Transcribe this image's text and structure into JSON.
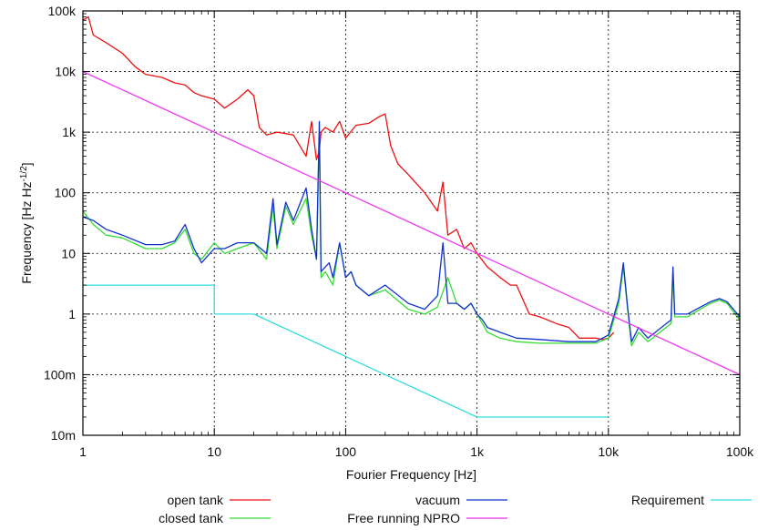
{
  "chart_data": {
    "type": "line",
    "title": "",
    "xlabel": "Fourier Frequency [Hz]",
    "ylabel_main": "Frequency [Hz Hz",
    "ylabel_sup": "-1/2",
    "ylabel_end": "]",
    "x_scale": "log",
    "y_scale": "log",
    "xlim": [
      1,
      100000
    ],
    "ylim": [
      0.01,
      100000
    ],
    "grid": true,
    "legend_position": "bottom",
    "x_ticks": [
      {
        "value": 1,
        "label": "1"
      },
      {
        "value": 10,
        "label": "10"
      },
      {
        "value": 100,
        "label": "100"
      },
      {
        "value": 1000,
        "label": "1k"
      },
      {
        "value": 10000,
        "label": "10k"
      },
      {
        "value": 100000,
        "label": "100k"
      }
    ],
    "y_ticks": [
      {
        "value": 0.01,
        "label": "10m"
      },
      {
        "value": 0.1,
        "label": "100m"
      },
      {
        "value": 1,
        "label": "1"
      },
      {
        "value": 10,
        "label": "10"
      },
      {
        "value": 100,
        "label": "100"
      },
      {
        "value": 1000,
        "label": "1k"
      },
      {
        "value": 10000,
        "label": "10k"
      },
      {
        "value": 100000,
        "label": "100k"
      }
    ],
    "series": [
      {
        "name": "open tank",
        "color": "#ee1111",
        "x": [
          1,
          1.1,
          1.2,
          1.5,
          2,
          2.5,
          3,
          4,
          5,
          6,
          7,
          8,
          10,
          12,
          15,
          18,
          20,
          22,
          25,
          30,
          40,
          50,
          55,
          60,
          63,
          65,
          70,
          80,
          90,
          100,
          120,
          150,
          180,
          200,
          220,
          250,
          300,
          400,
          500,
          550,
          600,
          700,
          800,
          900,
          1000,
          1200,
          1500,
          1800,
          2000,
          2500,
          3000,
          4000,
          5000,
          6000,
          7000,
          8000,
          9000,
          10000,
          11000
        ],
        "y": [
          70000,
          80000,
          40000,
          30000,
          20000,
          12000,
          9000,
          8000,
          6500,
          6000,
          4500,
          4000,
          3500,
          2500,
          3500,
          5000,
          4000,
          1200,
          900,
          1000,
          900,
          400,
          1500,
          350,
          500,
          1000,
          1200,
          1000,
          1500,
          800,
          1300,
          1400,
          1800,
          2000,
          600,
          300,
          200,
          100,
          50,
          150,
          20,
          25,
          12,
          15,
          10,
          6,
          4,
          3,
          3,
          1,
          0.9,
          0.7,
          0.6,
          0.4,
          0.4,
          0.4,
          0.38,
          0.4,
          0.5
        ]
      },
      {
        "name": "closed tank",
        "color": "#33dd33",
        "x": [
          1,
          1.2,
          1.5,
          2,
          3,
          4,
          5,
          6,
          7,
          8,
          10,
          12,
          15,
          20,
          25,
          28,
          30,
          35,
          40,
          50,
          55,
          60,
          63,
          65,
          70,
          80,
          90,
          100,
          110,
          120,
          150,
          200,
          300,
          400,
          500,
          600,
          700,
          800,
          900,
          1000,
          1100,
          1200,
          1500,
          2000,
          3000,
          5000,
          8000,
          10000,
          12000,
          13000,
          14000,
          15000,
          17000,
          20000,
          30000,
          31000,
          32000,
          40000,
          50000,
          60000,
          70000,
          80000,
          100000
        ],
        "y": [
          50,
          30,
          20,
          18,
          12,
          12,
          15,
          25,
          10,
          8,
          15,
          10,
          12,
          15,
          8,
          60,
          12,
          60,
          30,
          80,
          20,
          8,
          1000,
          4,
          5,
          3,
          15,
          4,
          5,
          3,
          2,
          2.5,
          1.2,
          1,
          1.3,
          4,
          1.5,
          1.2,
          1.5,
          1.0,
          0.7,
          0.5,
          0.4,
          0.35,
          0.33,
          0.33,
          0.33,
          0.4,
          1.5,
          6,
          1.2,
          0.3,
          0.5,
          0.35,
          0.7,
          5,
          0.9,
          0.9,
          1.2,
          1.5,
          1.7,
          1.5,
          0.8
        ]
      },
      {
        "name": "vacuum",
        "color": "#1133cc",
        "x": [
          1,
          1.2,
          1.5,
          2,
          3,
          4,
          5,
          6,
          7,
          8,
          10,
          12,
          15,
          20,
          25,
          28,
          30,
          35,
          40,
          50,
          55,
          60,
          63,
          65,
          70,
          75,
          80,
          90,
          100,
          110,
          120,
          150,
          200,
          300,
          400,
          500,
          550,
          600,
          700,
          800,
          900,
          1000,
          1100,
          1200,
          1500,
          2000,
          3000,
          5000,
          8000,
          10000,
          12000,
          13000,
          14000,
          15000,
          17000,
          20000,
          30000,
          31000,
          32000,
          40000,
          50000,
          60000,
          70000,
          80000,
          100000
        ],
        "y": [
          40,
          35,
          25,
          20,
          14,
          14,
          16,
          30,
          12,
          7,
          12,
          12,
          15,
          15,
          10,
          80,
          14,
          70,
          35,
          120,
          25,
          8,
          1500,
          5,
          6,
          7,
          4,
          15,
          4,
          5,
          3,
          2,
          3,
          1.5,
          1.2,
          2,
          15,
          1.5,
          1.5,
          1.2,
          1.5,
          1.0,
          0.8,
          0.6,
          0.5,
          0.4,
          0.38,
          0.35,
          0.35,
          0.45,
          1.8,
          7,
          1.3,
          0.35,
          0.6,
          0.4,
          0.8,
          6,
          1.0,
          1.0,
          1.3,
          1.6,
          1.8,
          1.6,
          0.9
        ]
      },
      {
        "name": "Free running NPRO",
        "color": "#ee33ee",
        "x": [
          1,
          100000
        ],
        "y": [
          10000,
          0.1
        ]
      },
      {
        "name": "Requirement",
        "color": "#33dddd",
        "x": [
          1,
          10,
          10,
          20,
          1000,
          1000,
          10000
        ],
        "y": [
          3,
          3,
          1,
          1,
          0.02,
          0.02,
          0.02
        ]
      }
    ]
  }
}
